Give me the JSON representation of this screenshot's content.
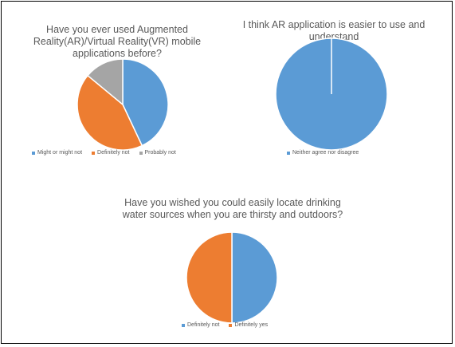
{
  "chart_data": [
    {
      "type": "pie",
      "title": "Have you ever used Augmented Reality(AR)/Virtual Reality(VR) mobile applications before?",
      "categories": [
        "Might or might not",
        "Definitely not",
        "Probably not"
      ],
      "values": [
        43,
        43,
        14
      ],
      "colors": [
        "#5B9BD5",
        "#ED7D31",
        "#A5A5A5"
      ],
      "legend": "bottom"
    },
    {
      "type": "pie",
      "title": "I think AR application is easier to use and understand",
      "categories": [
        "Neither agree nor disagree"
      ],
      "values": [
        100
      ],
      "colors": [
        "#5B9BD5"
      ],
      "legend": "bottom"
    },
    {
      "type": "pie",
      "title": "Have you wished you could easily locate drinking water sources when you are thirsty and outdoors?",
      "categories": [
        "Definitely not",
        "Definitely yes"
      ],
      "values": [
        50,
        50
      ],
      "colors": [
        "#5B9BD5",
        "#ED7D31"
      ],
      "legend": "bottom"
    }
  ]
}
